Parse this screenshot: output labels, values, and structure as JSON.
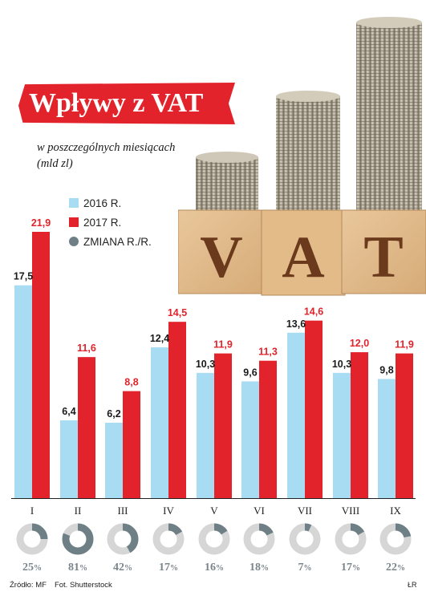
{
  "title": "Wpływy z VAT",
  "subtitle": "w poszczególnych miesiącach (mld zl)",
  "legend": [
    {
      "label": "2016 R.",
      "color": "#a8dcf3",
      "shape": "square"
    },
    {
      "label": "2017 R.",
      "color": "#e3232b",
      "shape": "square"
    },
    {
      "label": "ZMIANA R./R.",
      "color": "#6e7f86",
      "shape": "circle"
    }
  ],
  "photo_text": "VAT",
  "colors": {
    "accent": "#e3232b",
    "bar2016": "#a8dcf3",
    "donut": "#6e7f86",
    "donut_track": "#d6d6d6",
    "percent_text": "#7b858c"
  },
  "chart_data": {
    "type": "bar",
    "categories": [
      "I",
      "II",
      "III",
      "IV",
      "V",
      "VI",
      "VII",
      "VIII",
      "IX"
    ],
    "series": [
      {
        "name": "2016 R.",
        "values": [
          17.5,
          6.4,
          6.2,
          12.4,
          10.3,
          9.6,
          13.6,
          10.3,
          9.8
        ],
        "labels": [
          "17,5",
          "6,4",
          "6,2",
          "12,4",
          "10,3",
          "9,6",
          "13,6",
          "10,3",
          "9,8"
        ]
      },
      {
        "name": "2017 R.",
        "values": [
          21.9,
          11.6,
          8.8,
          14.5,
          11.9,
          11.3,
          14.6,
          12.0,
          11.9
        ],
        "labels": [
          "21,9",
          "11,6",
          "8,8",
          "14,5",
          "11,9",
          "11,3",
          "14,6",
          "12,0",
          "11,9"
        ]
      }
    ],
    "change": {
      "name": "ZMIANA R./R.",
      "values": [
        25,
        81,
        42,
        17,
        16,
        18,
        7,
        17,
        22
      ],
      "labels": [
        "25",
        "81",
        "42",
        "17",
        "16",
        "18",
        "7",
        "17",
        "22"
      ],
      "unit": "%"
    },
    "title": "Wpływy z VAT",
    "subtitle": "w poszczególnych miesiącach (mld zl)",
    "ylim": [
      0,
      21.9
    ],
    "grid": false,
    "legend_position": "top-left"
  },
  "footer": {
    "source": "Źródło: MF",
    "photo_credit": "Fot. Shutterstock",
    "author": "ŁR"
  }
}
